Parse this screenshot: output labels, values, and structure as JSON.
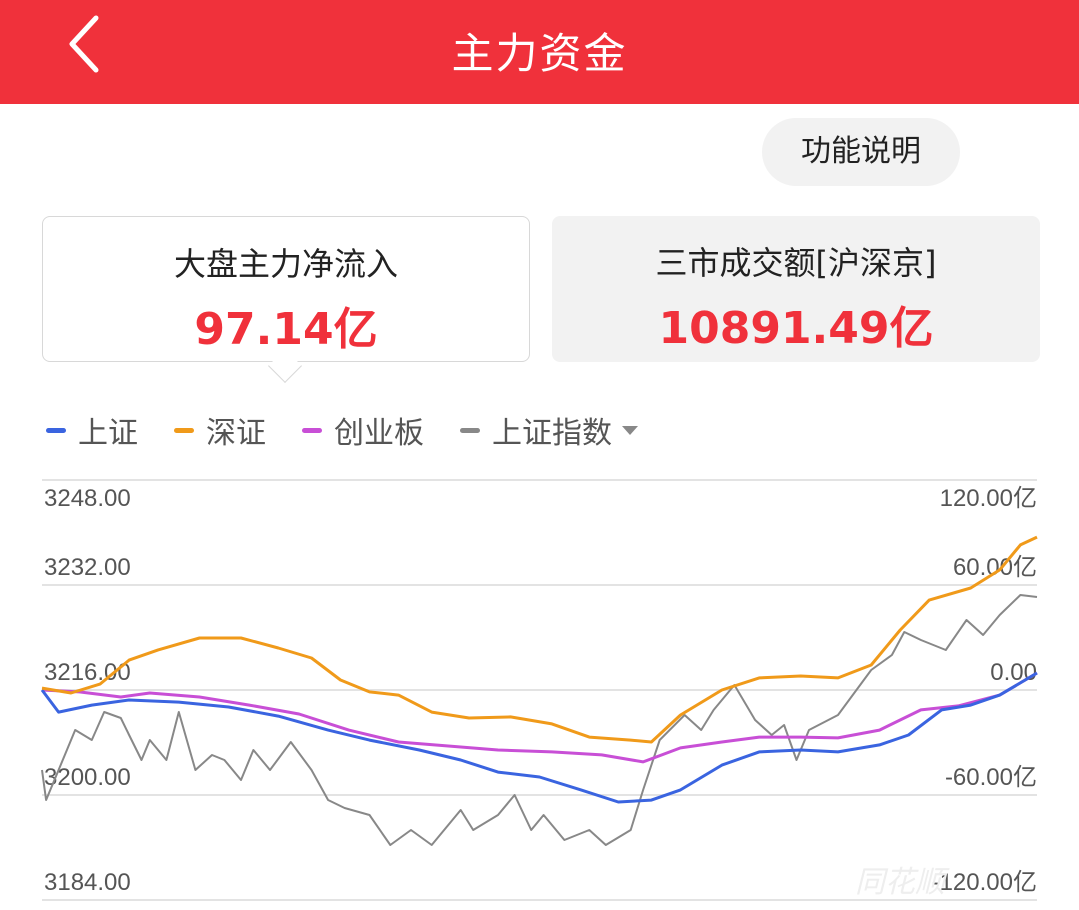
{
  "header": {
    "title": "主力资金",
    "back_icon": "chevron-left-icon"
  },
  "help_button": "功能说明",
  "cards": [
    {
      "label": "大盘主力净流入",
      "value": "97.14亿"
    },
    {
      "label": "三市成交额[沪深京]",
      "value": "10891.49亿"
    }
  ],
  "legend": [
    {
      "label": "上证",
      "color": "#3a64e0"
    },
    {
      "label": "深证",
      "color": "#f09a1a"
    },
    {
      "label": "创业板",
      "color": "#c84fd6"
    },
    {
      "label": "上证指数",
      "color": "#888888",
      "dropdown": true
    }
  ],
  "watermark": "同花顺",
  "colors": {
    "accent": "#f0313b"
  },
  "chart_data": {
    "type": "line",
    "grid": true,
    "left_axis": {
      "ticks": [
        "3248.00",
        "3232.00",
        "3216.00",
        "3200.00",
        "3184.00"
      ],
      "range": [
        3184,
        3248
      ]
    },
    "right_axis": {
      "ticks": [
        "120.00亿",
        "60.00亿",
        "0.00",
        "-60.00亿",
        "-120.00亿"
      ],
      "range": [
        -120,
        120
      ]
    },
    "xlim": [
      0,
      240
    ],
    "series": [
      {
        "name": "上证",
        "axis": "right",
        "color": "#3a64e0",
        "x": [
          0,
          4,
          12,
          21,
          33,
          45,
          57,
          69,
          79,
          91,
          101,
          110,
          120,
          130,
          139,
          147,
          154,
          164,
          173,
          183,
          192,
          202,
          209,
          217,
          224,
          231,
          240
        ],
        "values": [
          0,
          -12.6,
          -8.6,
          -5.7,
          -6.9,
          -9.7,
          -14.9,
          -22.9,
          -28.6,
          -34.3,
          -40,
          -46.9,
          -49.7,
          -57.1,
          -64,
          -62.9,
          -57.1,
          -42.9,
          -35.4,
          -34.3,
          -35.4,
          -31.4,
          -25.7,
          -11.4,
          -8.6,
          -2.9,
          9.7
        ]
      },
      {
        "name": "深证",
        "axis": "right",
        "color": "#f09a1a",
        "x": [
          0,
          7,
          14,
          21,
          28,
          38,
          48,
          57,
          65,
          72,
          79,
          86,
          94,
          103,
          113,
          123,
          132,
          142,
          147,
          154,
          164,
          173,
          183,
          192,
          200,
          207,
          214,
          224,
          231,
          236,
          240
        ],
        "values": [
          1.1,
          -1.7,
          3.4,
          17.1,
          22.9,
          29.7,
          29.7,
          24,
          18.3,
          5.7,
          -1.1,
          -2.9,
          -12.6,
          -16,
          -15.4,
          -19.4,
          -26.9,
          -28.6,
          -29.7,
          -14.3,
          0,
          6.9,
          8,
          6.9,
          14.3,
          34.3,
          51.4,
          58.3,
          68.6,
          82.9,
          87.4
        ]
      },
      {
        "name": "创业板",
        "axis": "right",
        "color": "#c84fd6",
        "x": [
          0,
          9,
          19,
          26,
          38,
          50,
          62,
          74,
          86,
          98,
          110,
          123,
          135,
          145,
          154,
          164,
          173,
          183,
          192,
          202,
          212,
          221,
          231,
          240
        ],
        "values": [
          0,
          -1.1,
          -4,
          -1.7,
          -4,
          -8.6,
          -13.7,
          -22.9,
          -29.7,
          -32,
          -34.3,
          -35.4,
          -37.1,
          -41.1,
          -33.1,
          -29.7,
          -26.9,
          -26.9,
          -27.4,
          -22.9,
          -11.4,
          -9.1,
          -2.9,
          9.7
        ]
      },
      {
        "name": "上证指数",
        "axis": "left",
        "color": "#888888",
        "x": [
          0,
          1,
          4,
          8,
          12,
          15,
          19,
          21,
          24,
          26,
          30,
          33,
          37,
          41,
          44,
          48,
          51,
          55,
          60,
          65,
          69,
          73,
          79,
          84,
          89,
          94,
          101,
          104,
          110,
          114,
          118,
          121,
          126,
          132,
          136,
          142,
          145,
          149,
          155,
          159,
          162,
          167,
          172,
          176,
          179,
          182,
          185,
          192,
          200,
          205,
          208,
          212,
          218,
          223,
          227,
          231,
          236,
          240
        ],
        "values": [
          3203.81,
          3199.24,
          3203.81,
          3209.9,
          3208.38,
          3212.65,
          3211.73,
          3209.14,
          3205.33,
          3208.38,
          3205.33,
          3212.65,
          3203.81,
          3206.1,
          3205.33,
          3202.29,
          3206.86,
          3203.81,
          3208.08,
          3203.81,
          3199.24,
          3198.02,
          3196.95,
          3192.38,
          3194.67,
          3192.38,
          3197.71,
          3194.67,
          3196.95,
          3200,
          3194.67,
          3196.95,
          3193.14,
          3194.67,
          3192.38,
          3194.67,
          3200.76,
          3208.38,
          3212.19,
          3209.9,
          3212.95,
          3216.76,
          3211.43,
          3209.14,
          3210.67,
          3205.33,
          3209.9,
          3212.19,
          3219.05,
          3221.33,
          3224.84,
          3223.62,
          3222.1,
          3226.67,
          3224.38,
          3227.43,
          3230.48,
          3230.17
        ]
      }
    ]
  }
}
